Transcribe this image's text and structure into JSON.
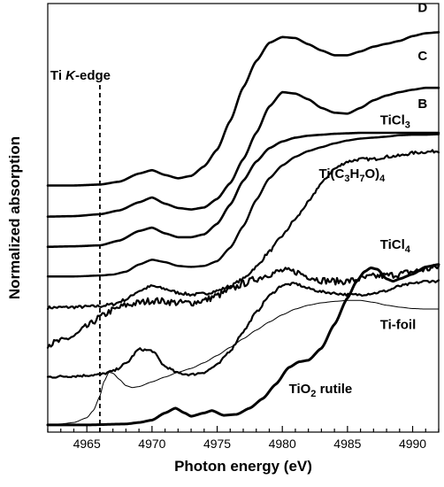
{
  "chart_data": {
    "type": "line",
    "title": "",
    "xlabel": "Photon energy (eV)",
    "ylabel": "Normalized absorption",
    "xlim": [
      4962,
      4992
    ],
    "ylim": [
      -0.15,
      8.8
    ],
    "x_ticks": [
      4965,
      4970,
      4975,
      4980,
      4985,
      4990
    ],
    "y_ticks_visible": false,
    "grid": false,
    "legend": "none",
    "annotation": {
      "text": "Ti K-edge",
      "x": 4966
    },
    "series": [
      {
        "name": "D",
        "color": "#000000",
        "width": 2.6,
        "noise": 0,
        "x": [
          4962,
          4964,
          4966,
          4967.5,
          4969,
          4970,
          4971,
          4972,
          4973,
          4974,
          4975,
          4976,
          4977,
          4978,
          4979,
          4980,
          4981,
          4982,
          4983,
          4984,
          4985,
          4986,
          4987,
          4988,
          4989,
          4990,
          4991,
          4992
        ],
        "y": [
          5.0,
          5.0,
          5.02,
          5.08,
          5.25,
          5.32,
          5.22,
          5.15,
          5.2,
          5.4,
          5.75,
          6.35,
          7.05,
          7.6,
          7.98,
          8.1,
          8.08,
          7.95,
          7.82,
          7.72,
          7.72,
          7.8,
          7.9,
          7.96,
          8.02,
          8.12,
          8.18,
          8.2
        ]
      },
      {
        "name": "C",
        "color": "#000000",
        "width": 2.6,
        "noise": 0,
        "x": [
          4962,
          4964,
          4966,
          4967.5,
          4969,
          4970,
          4971,
          4972,
          4973,
          4974,
          4975,
          4976,
          4977,
          4978,
          4979,
          4980,
          4981,
          4982,
          4983,
          4984,
          4985,
          4986,
          4987,
          4988,
          4989,
          4990,
          4991,
          4992
        ],
        "y": [
          4.35,
          4.36,
          4.4,
          4.48,
          4.65,
          4.75,
          4.62,
          4.53,
          4.5,
          4.54,
          4.72,
          5.05,
          5.55,
          6.1,
          6.65,
          6.95,
          6.92,
          6.8,
          6.62,
          6.52,
          6.5,
          6.62,
          6.78,
          6.88,
          6.95,
          7.0,
          7.04,
          7.04
        ]
      },
      {
        "name": "B",
        "color": "#000000",
        "width": 2.6,
        "noise": 0,
        "x": [
          4962,
          4964,
          4966,
          4967.5,
          4969,
          4970,
          4971,
          4972,
          4973,
          4974,
          4975,
          4976,
          4977,
          4978,
          4979,
          4980,
          4981,
          4982,
          4983,
          4984,
          4985,
          4986,
          4987,
          4988,
          4989,
          4990,
          4991,
          4992
        ],
        "y": [
          3.72,
          3.73,
          3.75,
          3.85,
          4.05,
          4.12,
          4.0,
          3.92,
          3.92,
          3.98,
          4.2,
          4.6,
          5.1,
          5.5,
          5.78,
          5.92,
          6.0,
          6.04,
          6.06,
          6.08,
          6.09,
          6.1,
          6.1,
          6.1,
          6.1,
          6.1,
          6.1,
          6.1
        ]
      },
      {
        "name": "TiCl3",
        "color": "#000000",
        "width": 2.4,
        "noise": 0,
        "x": [
          4962,
          4964,
          4966,
          4967,
          4968,
          4969,
          4970,
          4971,
          4972,
          4973,
          4974,
          4975,
          4976,
          4977,
          4978,
          4979,
          4980,
          4981,
          4982,
          4983,
          4984,
          4985,
          4986,
          4987,
          4988,
          4989,
          4990,
          4991,
          4992
        ],
        "y": [
          3.1,
          3.1,
          3.12,
          3.14,
          3.2,
          3.35,
          3.45,
          3.4,
          3.32,
          3.3,
          3.32,
          3.42,
          3.7,
          4.15,
          4.7,
          5.15,
          5.42,
          5.6,
          5.72,
          5.8,
          5.88,
          5.94,
          5.98,
          6.0,
          6.02,
          6.05,
          6.06,
          6.06,
          6.07
        ]
      },
      {
        "name": "Ti(C3H7O)4",
        "color": "#000000",
        "width": 2.2,
        "noise": 0.03,
        "x": [
          4962,
          4964,
          4966,
          4967,
          4968,
          4969,
          4970,
          4971,
          4972,
          4973,
          4974,
          4975,
          4976,
          4977,
          4978,
          4979,
          4980,
          4981,
          4982,
          4983,
          4984,
          4985,
          4986,
          4987,
          4988,
          4989,
          4990,
          4991,
          4992
        ],
        "y": [
          2.45,
          2.46,
          2.48,
          2.52,
          2.62,
          2.8,
          2.9,
          2.84,
          2.76,
          2.72,
          2.74,
          2.8,
          2.9,
          3.05,
          3.3,
          3.62,
          3.95,
          4.3,
          4.65,
          5.05,
          5.35,
          5.5,
          5.55,
          5.55,
          5.6,
          5.62,
          5.68,
          5.7,
          5.72
        ]
      },
      {
        "name": "TiCl4",
        "color": "#000000",
        "width": 2.2,
        "noise": 0.07,
        "x": [
          4962,
          4963,
          4964,
          4965,
          4966,
          4967,
          4968,
          4969,
          4970,
          4971,
          4972,
          4973,
          4974,
          4975,
          4976,
          4977,
          4978,
          4979,
          4980,
          4981,
          4982,
          4983,
          4984,
          4985,
          4986,
          4987,
          4988,
          4989,
          4990,
          4991,
          4992
        ],
        "y": [
          1.68,
          1.75,
          1.85,
          2.05,
          2.25,
          2.4,
          2.5,
          2.55,
          2.6,
          2.58,
          2.55,
          2.55,
          2.6,
          2.7,
          2.82,
          2.95,
          3.05,
          3.15,
          3.22,
          3.2,
          3.1,
          3.02,
          3.0,
          3.0,
          3.05,
          3.1,
          3.12,
          3.15,
          3.2,
          3.25,
          3.3
        ]
      },
      {
        "name": "Ti-foil",
        "color": "#000000",
        "width": 2.2,
        "noise": 0.025,
        "x": [
          4962,
          4964,
          4966,
          4967,
          4968,
          4969,
          4970,
          4971,
          4972,
          4973,
          4974,
          4975,
          4976,
          4977,
          4978,
          4979,
          4980,
          4981,
          4982,
          4983,
          4984,
          4985,
          4986,
          4987,
          4988,
          4989,
          4990,
          4991,
          4992
        ],
        "y": [
          1.0,
          1.02,
          1.05,
          1.12,
          1.28,
          1.58,
          1.55,
          1.22,
          1.08,
          1.05,
          1.1,
          1.25,
          1.55,
          1.95,
          2.35,
          2.7,
          2.92,
          2.95,
          2.85,
          2.78,
          2.75,
          2.72,
          2.72,
          2.75,
          2.8,
          2.9,
          2.95,
          3.0,
          3.0
        ]
      },
      {
        "name": "TiO2 rutile (thin)",
        "color": "#000000",
        "width": 1.0,
        "noise": 0,
        "x": [
          4962,
          4963,
          4964,
          4965,
          4965.5,
          4966,
          4966.3,
          4966.7,
          4967,
          4967.5,
          4968,
          4968.5,
          4969,
          4970,
          4971,
          4972,
          4973,
          4974,
          4975,
          4976,
          4977,
          4978,
          4979,
          4980,
          4981,
          4982,
          4983,
          4984,
          4985,
          4986,
          4987,
          4988,
          4989,
          4990,
          4991,
          4992
        ],
        "y": [
          0.0,
          0.02,
          0.05,
          0.15,
          0.3,
          0.6,
          0.9,
          1.1,
          1.08,
          0.95,
          0.82,
          0.78,
          0.8,
          0.9,
          1.0,
          1.1,
          1.18,
          1.3,
          1.45,
          1.62,
          1.8,
          1.98,
          2.15,
          2.3,
          2.42,
          2.5,
          2.55,
          2.58,
          2.6,
          2.6,
          2.56,
          2.5,
          2.46,
          2.43,
          2.42,
          2.42
        ]
      },
      {
        "name": "TiO2 rutile (bold)",
        "color": "#000000",
        "width": 3.0,
        "noise": 0,
        "x": [
          4962,
          4965,
          4968,
          4969,
          4970,
          4971,
          4971.8,
          4972.5,
          4973,
          4974,
          4974.6,
          4975.5,
          4976.5,
          4977.5,
          4978.5,
          4979.5,
          4980.5,
          4981.3,
          4982,
          4983,
          4984,
          4985,
          4985.7,
          4986.3,
          4986.8,
          4987.3,
          4988,
          4988.5,
          4989,
          4990,
          4991,
          4992
        ],
        "y": [
          0.0,
          0.0,
          0.02,
          0.05,
          0.1,
          0.25,
          0.35,
          0.25,
          0.18,
          0.25,
          0.3,
          0.2,
          0.22,
          0.35,
          0.55,
          0.85,
          1.2,
          1.32,
          1.35,
          1.6,
          2.1,
          2.65,
          3.0,
          3.2,
          3.28,
          3.25,
          3.05,
          3.0,
          3.05,
          3.15,
          3.3,
          3.35
        ]
      }
    ],
    "labels": [
      {
        "text": "D",
        "sub": "",
        "tail": "",
        "x": 4990.4,
        "y": 8.62
      },
      {
        "text": "C",
        "sub": "",
        "tail": "",
        "x": 4990.4,
        "y": 7.62
      },
      {
        "text": "B",
        "sub": "",
        "tail": "",
        "x": 4990.4,
        "y": 6.62
      },
      {
        "text": "TiCl",
        "sub": "3",
        "tail": "",
        "x": 4987.5,
        "y": 6.28
      },
      {
        "text": "Ti(C",
        "sub": "3",
        "tail": "H",
        "sub2": "7",
        "tail2": "O)",
        "sub3": "4",
        "x": 4982.8,
        "y": 5.16
      },
      {
        "text": "TiCl",
        "sub": "4",
        "tail": "",
        "x": 4987.5,
        "y": 3.68
      },
      {
        "text": "Ti-foil",
        "sub": "",
        "tail": "",
        "x": 4987.5,
        "y": 2.0
      },
      {
        "text": "TiO",
        "sub": "2",
        "tail": " rutile",
        "x": 4980.5,
        "y": 0.66
      }
    ]
  }
}
